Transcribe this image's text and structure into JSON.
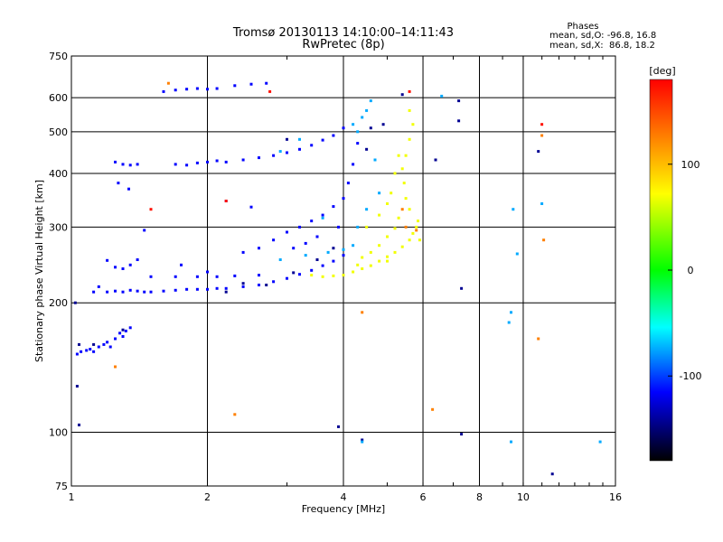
{
  "chart_data": {
    "type": "scatter",
    "title": "Tromsø 20130113 14:10:00–14:11:43",
    "subtitle": "RwPretec (8p)",
    "xlabel": "Frequency [MHz]",
    "ylabel": "Stationary phase Virtual Height [km]",
    "x_scale": "log",
    "y_scale": "log",
    "xlim": [
      1,
      16
    ],
    "ylim": [
      75,
      750
    ],
    "x_ticks": [
      1,
      2,
      4,
      6,
      8,
      10,
      16
    ],
    "x_tick_labels": [
      "1",
      "2",
      "4",
      "6",
      "8",
      "10",
      "16"
    ],
    "y_ticks": [
      75,
      100,
      200,
      300,
      400,
      500,
      600,
      750
    ],
    "y_tick_labels": [
      "75",
      "100",
      "200",
      "300",
      "400",
      "500",
      "600",
      "750"
    ],
    "grid": true,
    "phase_stats": {
      "heading": "Phases",
      "line_o": "mean, sd,O: -96.8, 16.8",
      "line_x": "mean, sd,X:  86.8, 18.2"
    },
    "colorbar": {
      "label": "[deg]",
      "range": [
        -180,
        180
      ],
      "ticks": [
        100,
        0,
        -100
      ],
      "tick_labels": [
        "100",
        "0",
        "-100"
      ],
      "colors": [
        "#ff0000",
        "#ffff00",
        "#00ff00",
        "#00ffff",
        "#0000ff",
        "#000000"
      ]
    },
    "series": [
      {
        "phase": -110,
        "points": [
          [
            1.03,
            152
          ],
          [
            1.05,
            154
          ],
          [
            1.08,
            155
          ],
          [
            1.1,
            156
          ],
          [
            1.12,
            154
          ],
          [
            1.15,
            158
          ],
          [
            1.18,
            160
          ],
          [
            1.2,
            162
          ],
          [
            1.22,
            158
          ],
          [
            1.25,
            165
          ],
          [
            1.28,
            170
          ],
          [
            1.3,
            167
          ],
          [
            1.32,
            172
          ],
          [
            1.35,
            175
          ],
          [
            1.12,
            212
          ],
          [
            1.15,
            218
          ],
          [
            1.2,
            212
          ],
          [
            1.25,
            213
          ],
          [
            1.3,
            212
          ],
          [
            1.35,
            214
          ],
          [
            1.4,
            213
          ],
          [
            1.45,
            212
          ],
          [
            1.5,
            212
          ],
          [
            1.6,
            213
          ],
          [
            1.7,
            214
          ],
          [
            1.8,
            215
          ],
          [
            1.9,
            215
          ],
          [
            2.0,
            215
          ],
          [
            2.1,
            216
          ],
          [
            2.2,
            216
          ],
          [
            2.4,
            218
          ],
          [
            2.6,
            220
          ],
          [
            2.8,
            224
          ],
          [
            3.0,
            228
          ],
          [
            3.2,
            233
          ],
          [
            3.4,
            238
          ],
          [
            3.6,
            244
          ],
          [
            3.8,
            250
          ],
          [
            4.0,
            258
          ],
          [
            1.5,
            230
          ],
          [
            1.7,
            230
          ],
          [
            1.9,
            230
          ],
          [
            2.1,
            230
          ],
          [
            2.3,
            231
          ],
          [
            2.6,
            232
          ],
          [
            1.3,
            240
          ],
          [
            1.35,
            245
          ],
          [
            1.4,
            252
          ],
          [
            1.25,
            242
          ],
          [
            1.2,
            251
          ],
          [
            1.75,
            245
          ],
          [
            2.0,
            236
          ],
          [
            1.25,
            425
          ],
          [
            1.3,
            420
          ],
          [
            1.35,
            418
          ],
          [
            1.4,
            420
          ],
          [
            1.7,
            420
          ],
          [
            1.8,
            418
          ],
          [
            1.9,
            423
          ],
          [
            2.0,
            425
          ],
          [
            2.1,
            428
          ],
          [
            2.2,
            425
          ],
          [
            2.4,
            430
          ],
          [
            2.6,
            435
          ],
          [
            2.8,
            440
          ],
          [
            3.0,
            447
          ],
          [
            3.2,
            455
          ],
          [
            3.4,
            465
          ],
          [
            3.6,
            478
          ],
          [
            3.8,
            490
          ],
          [
            4.0,
            510
          ],
          [
            1.6,
            620
          ],
          [
            1.7,
            625
          ],
          [
            1.8,
            628
          ],
          [
            1.9,
            630
          ],
          [
            2.0,
            628
          ],
          [
            2.1,
            630
          ],
          [
            2.3,
            640
          ],
          [
            2.5,
            645
          ],
          [
            2.7,
            648
          ],
          [
            2.4,
            262
          ],
          [
            2.6,
            268
          ],
          [
            2.8,
            280
          ],
          [
            3.0,
            292
          ],
          [
            3.2,
            300
          ],
          [
            3.4,
            310
          ],
          [
            3.6,
            320
          ],
          [
            3.8,
            335
          ],
          [
            4.0,
            350
          ],
          [
            4.1,
            380
          ],
          [
            4.2,
            420
          ],
          [
            4.3,
            470
          ],
          [
            3.1,
            268
          ],
          [
            3.3,
            275
          ],
          [
            3.5,
            285
          ],
          [
            3.9,
            300
          ],
          [
            1.27,
            380
          ],
          [
            1.34,
            368
          ],
          [
            1.45,
            295
          ],
          [
            2.2,
            345
          ],
          [
            2.5,
            334
          ]
        ]
      },
      {
        "phase": -140,
        "points": [
          [
            1.02,
            200
          ],
          [
            1.04,
            160
          ],
          [
            1.12,
            160
          ],
          [
            1.3,
            173
          ],
          [
            2.2,
            212
          ],
          [
            2.4,
            222
          ],
          [
            2.7,
            220
          ],
          [
            3.1,
            235
          ],
          [
            3.5,
            252
          ],
          [
            3.8,
            268
          ],
          [
            3.9,
            103
          ],
          [
            4.4,
            96
          ],
          [
            4.6,
            510
          ],
          [
            4.9,
            520
          ],
          [
            5.4,
            610
          ],
          [
            6.4,
            430
          ],
          [
            7.2,
            590
          ],
          [
            7.2,
            530
          ],
          [
            7.3,
            99
          ],
          [
            7.3,
            216
          ],
          [
            10.8,
            450
          ],
          [
            11.6,
            80
          ],
          [
            1.04,
            104
          ],
          [
            1.03,
            128
          ],
          [
            3.0,
            480
          ],
          [
            4.5,
            455
          ]
        ]
      },
      {
        "phase": -70,
        "points": [
          [
            2.9,
            252
          ],
          [
            3.3,
            258
          ],
          [
            3.7,
            262
          ],
          [
            4.0,
            266
          ],
          [
            4.2,
            272
          ],
          [
            3.6,
            315
          ],
          [
            3.2,
            480
          ],
          [
            2.9,
            450
          ],
          [
            4.2,
            520
          ],
          [
            4.5,
            560
          ],
          [
            4.4,
            540
          ],
          [
            4.3,
            500
          ],
          [
            4.6,
            590
          ],
          [
            4.7,
            430
          ],
          [
            4.3,
            300
          ],
          [
            4.5,
            330
          ],
          [
            4.8,
            360
          ],
          [
            4.4,
            95
          ],
          [
            6.6,
            605
          ],
          [
            9.4,
            95
          ],
          [
            14.8,
            95
          ],
          [
            9.7,
            260
          ],
          [
            9.4,
            190
          ],
          [
            9.3,
            180
          ],
          [
            9.5,
            330
          ],
          [
            11.0,
            340
          ]
        ]
      },
      {
        "phase": 95,
        "points": [
          [
            3.4,
            232
          ],
          [
            3.6,
            230
          ],
          [
            3.8,
            231
          ],
          [
            4.0,
            232
          ],
          [
            4.2,
            236
          ],
          [
            4.4,
            240
          ],
          [
            4.6,
            244
          ],
          [
            4.8,
            250
          ],
          [
            5.0,
            256
          ],
          [
            5.2,
            262
          ],
          [
            5.4,
            270
          ],
          [
            5.6,
            280
          ],
          [
            5.7,
            290
          ],
          [
            5.8,
            300
          ],
          [
            5.85,
            310
          ],
          [
            5.6,
            330
          ],
          [
            5.5,
            350
          ],
          [
            5.45,
            380
          ],
          [
            5.4,
            410
          ],
          [
            5.5,
            440
          ],
          [
            5.6,
            480
          ],
          [
            5.7,
            520
          ],
          [
            4.4,
            255
          ],
          [
            4.6,
            262
          ],
          [
            4.8,
            272
          ],
          [
            5.0,
            285
          ],
          [
            5.2,
            298
          ],
          [
            5.3,
            315
          ],
          [
            4.5,
            300
          ],
          [
            4.8,
            320
          ],
          [
            5.0,
            340
          ],
          [
            5.1,
            360
          ],
          [
            5.2,
            400
          ],
          [
            5.3,
            440
          ],
          [
            5.6,
            560
          ],
          [
            5.9,
            280
          ],
          [
            5.0,
            250
          ],
          [
            4.3,
            245
          ]
        ]
      },
      {
        "phase": 140,
        "points": [
          [
            1.64,
            648
          ],
          [
            2.3,
            110
          ],
          [
            6.3,
            113
          ],
          [
            4.4,
            190
          ],
          [
            11.0,
            490
          ],
          [
            11.1,
            280
          ],
          [
            10.8,
            165
          ],
          [
            1.25,
            142
          ],
          [
            5.4,
            330
          ],
          [
            5.5,
            300
          ],
          [
            5.8,
            295
          ]
        ]
      },
      {
        "phase": 175,
        "points": [
          [
            2.75,
            620
          ],
          [
            5.6,
            620
          ],
          [
            11.0,
            520
          ],
          [
            1.5,
            330
          ],
          [
            2.2,
            345
          ]
        ]
      }
    ]
  }
}
